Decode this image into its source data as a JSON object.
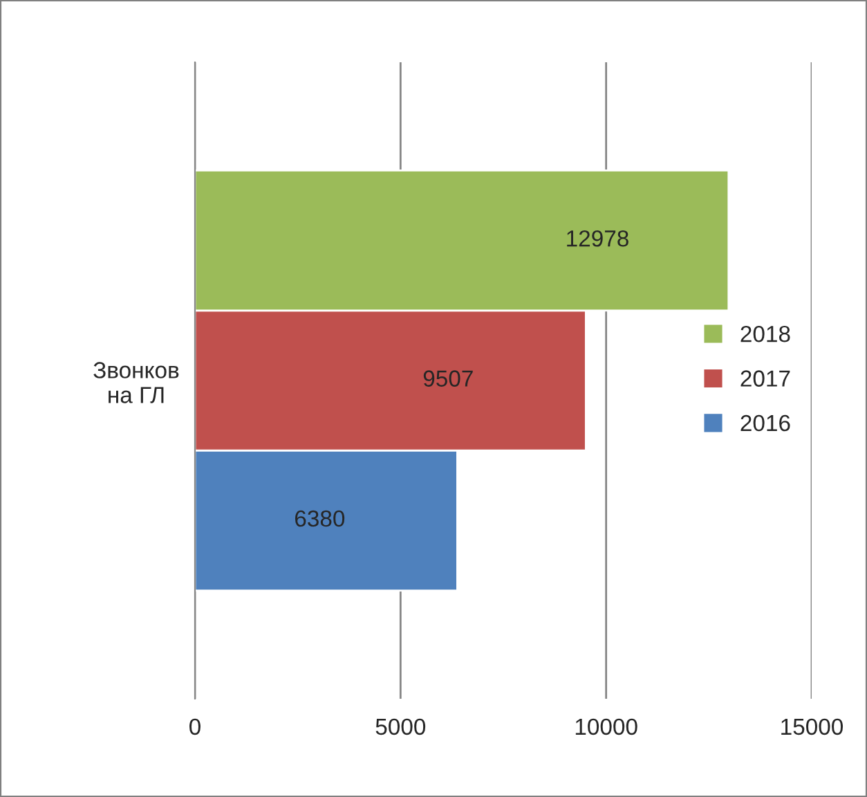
{
  "chart_data": {
    "type": "bar",
    "orientation": "horizontal",
    "categories": [
      "Звонков\nна ГЛ"
    ],
    "series": [
      {
        "name": "2016",
        "color": "#4f81bd",
        "values": [
          6380
        ]
      },
      {
        "name": "2017",
        "color": "#c0504d",
        "values": [
          9507
        ]
      },
      {
        "name": "2018",
        "color": "#9bbb59",
        "values": [
          12978
        ]
      }
    ],
    "xlim": [
      0,
      15000
    ],
    "xticks": [
      0,
      5000,
      10000,
      15000
    ],
    "grid": "x",
    "legend": "right",
    "data_labels": true
  }
}
